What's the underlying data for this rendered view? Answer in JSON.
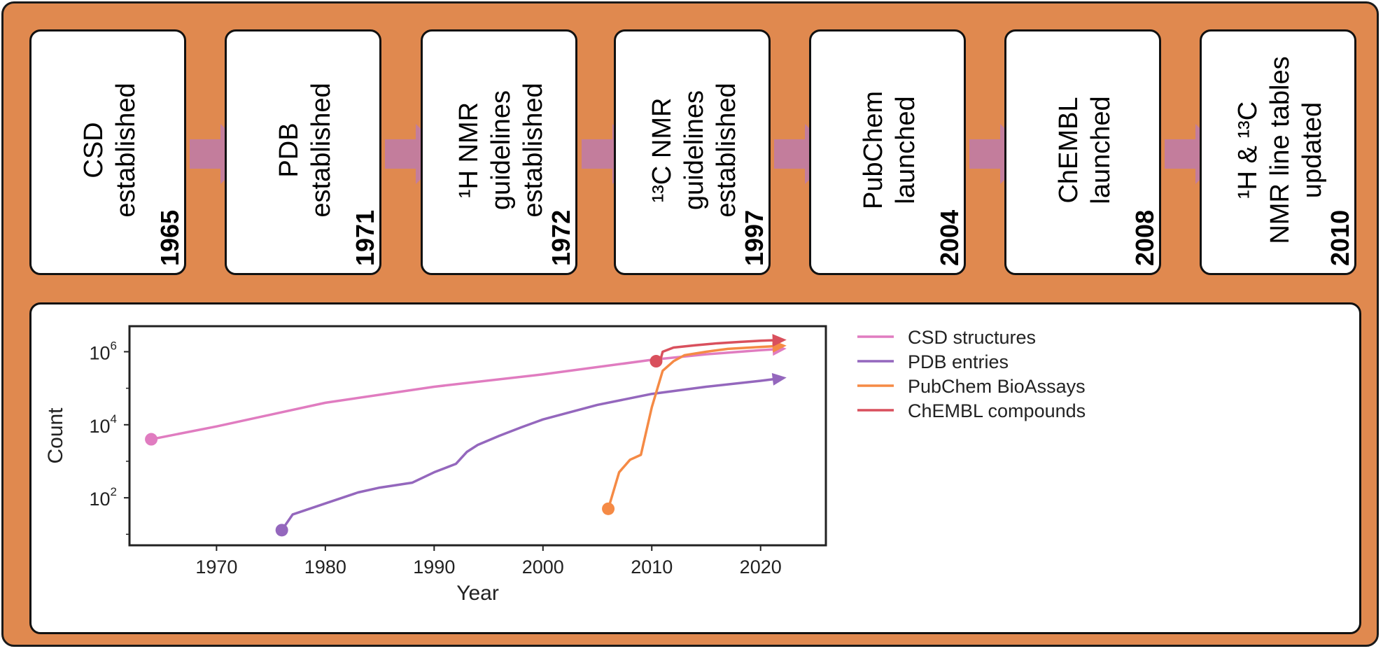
{
  "timeline": [
    {
      "year": "1965",
      "lines": [
        "CSD",
        "established"
      ]
    },
    {
      "year": "1971",
      "lines": [
        "PDB",
        "established"
      ]
    },
    {
      "year": "1972",
      "lines": [
        "¹H NMR",
        "guidelines",
        "established"
      ]
    },
    {
      "year": "1997",
      "lines": [
        "¹³C NMR",
        "guidelines",
        "established"
      ]
    },
    {
      "year": "2004",
      "lines": [
        "PubChem",
        "launched"
      ]
    },
    {
      "year": "2008",
      "lines": [
        "ChEMBL",
        "launched"
      ]
    },
    {
      "year": "2010",
      "lines": [
        "¹H & ¹³C",
        "NMR line tables",
        "updated"
      ]
    }
  ],
  "colors": {
    "background": "#e0894f",
    "arrow": "#c07ca4"
  },
  "chart_data": {
    "type": "line",
    "xlabel": "Year",
    "ylabel": "Count",
    "y_scale": "log",
    "xlim": [
      1962,
      2026
    ],
    "ylim": [
      5,
      5000000
    ],
    "x_ticks": [
      1970,
      1980,
      1990,
      2000,
      2010,
      2020
    ],
    "x_tick_labels": [
      "1970",
      "1980",
      "1990",
      "2000",
      "2010",
      "2020"
    ],
    "y_ticks": [
      100,
      10000,
      1000000
    ],
    "y_tick_labels": [
      {
        "base": "10",
        "exp": "2"
      },
      {
        "base": "10",
        "exp": "4"
      },
      {
        "base": "10",
        "exp": "6"
      }
    ],
    "legend_position": "outside-right",
    "grid": false,
    "series": [
      {
        "name": "CSD structures",
        "color": "#e07cc0",
        "x": [
          1964,
          1970,
          1980,
          1990,
          2000,
          2010,
          2015,
          2020,
          2022
        ],
        "y": [
          4000,
          9000,
          40000,
          110000,
          240000,
          600000,
          850000,
          1100000,
          1200000
        ]
      },
      {
        "name": "PDB entries",
        "color": "#9467bd",
        "x": [
          1976,
          1977,
          1980,
          1983,
          1985,
          1988,
          1990,
          1992,
          1993,
          1994,
          1996,
          1998,
          2000,
          2005,
          2010,
          2015,
          2020,
          2022
        ],
        "y": [
          13,
          35,
          70,
          140,
          190,
          260,
          500,
          850,
          1800,
          2800,
          5000,
          8500,
          14000,
          35000,
          70000,
          110000,
          160000,
          190000
        ]
      },
      {
        "name": "PubChem BioAssays",
        "color": "#f58a45",
        "x": [
          2006,
          2007,
          2008,
          2009,
          2010,
          2011,
          2012,
          2013,
          2015,
          2017,
          2020,
          2022
        ],
        "y": [
          50,
          500,
          1100,
          1500,
          30000,
          300000,
          550000,
          800000,
          1000000,
          1200000,
          1350000,
          1450000
        ]
      },
      {
        "name": "ChEMBL compounds",
        "color": "#d9505d",
        "x": [
          2010.4,
          2010.8,
          2011,
          2012,
          2014,
          2016,
          2018,
          2020,
          2022
        ],
        "y": [
          550000,
          600000,
          1000000,
          1300000,
          1500000,
          1700000,
          1850000,
          2000000,
          2100000
        ]
      }
    ]
  }
}
